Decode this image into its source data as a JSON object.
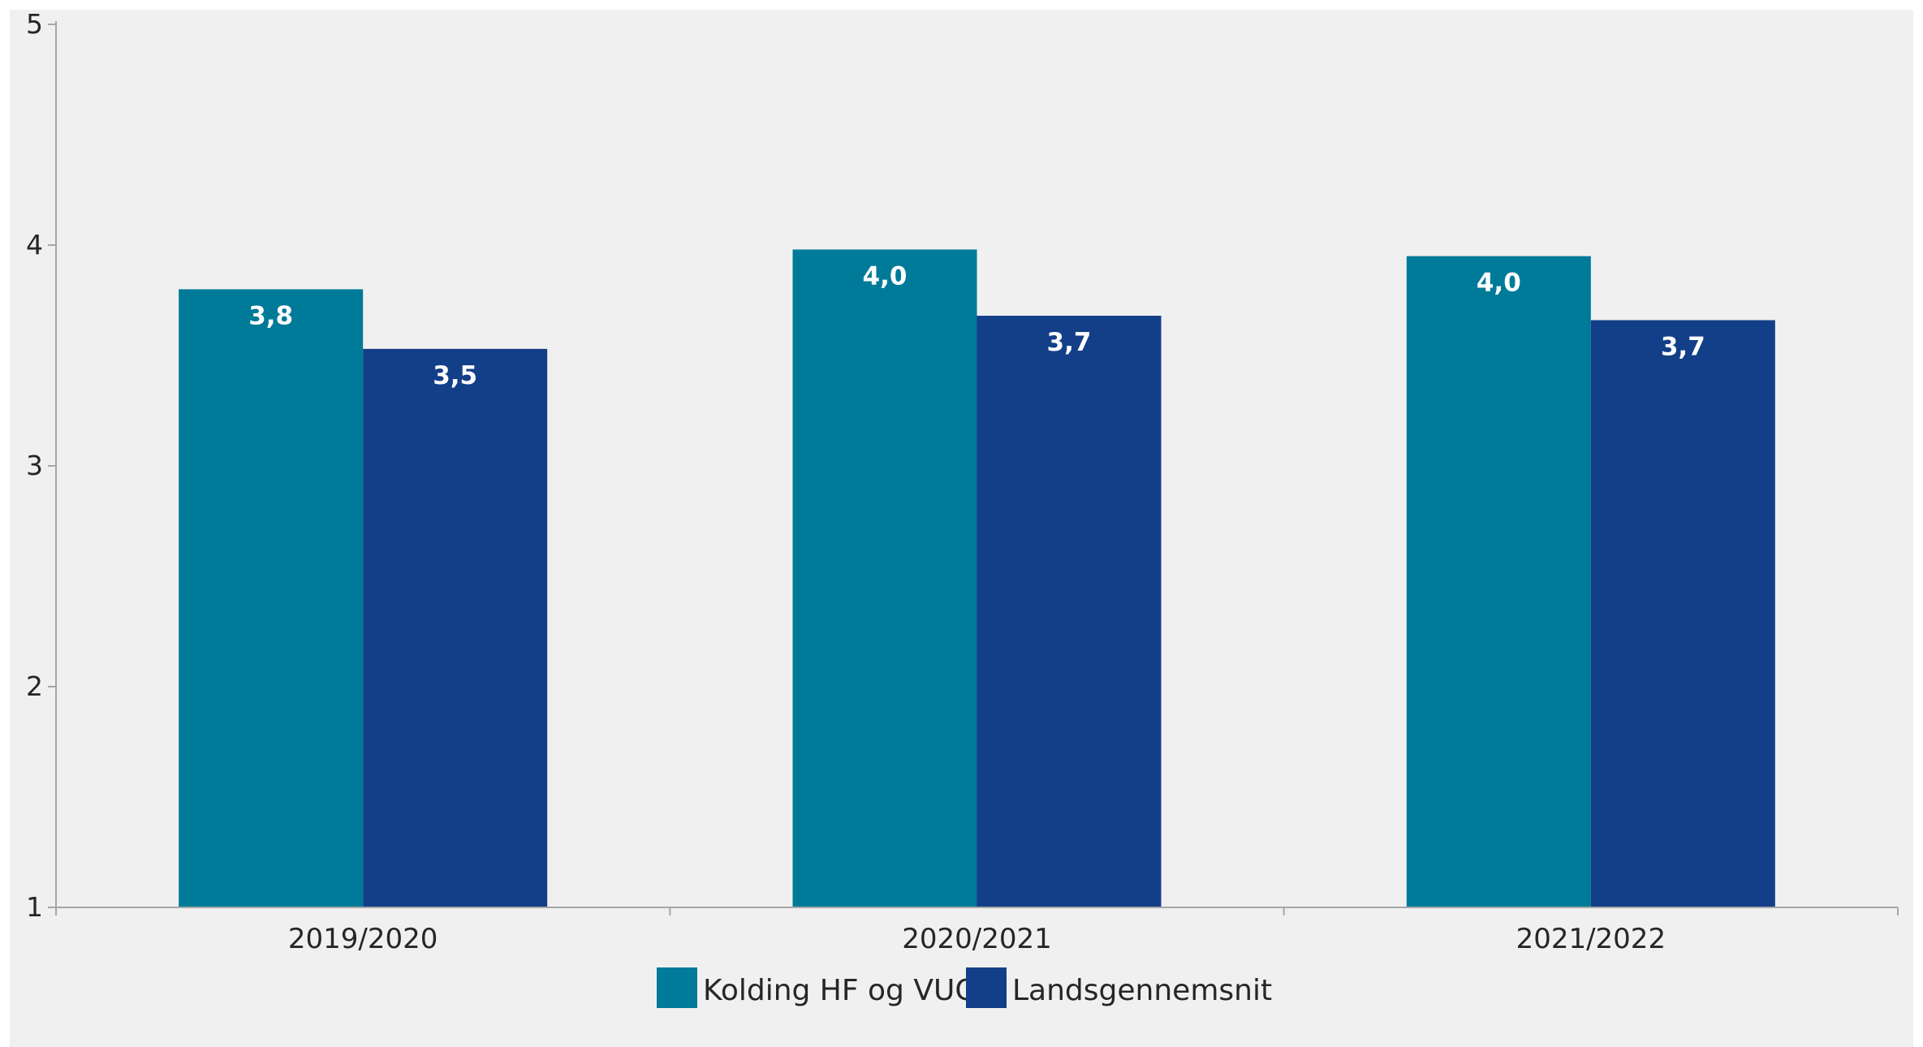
{
  "chart_data": {
    "type": "bar",
    "categories": [
      "2019/2020",
      "2020/2021",
      "2021/2022"
    ],
    "series": [
      {
        "name": "Kolding HF og VUC",
        "values": [
          3.8,
          3.98,
          3.95
        ],
        "labels": [
          "3,8",
          "4,0",
          "4,0"
        ],
        "color": "#007a99"
      },
      {
        "name": "Landsgennemsnit",
        "values": [
          3.53,
          3.68,
          3.66
        ],
        "labels": [
          "3,5",
          "3,7",
          "3,7"
        ],
        "color": "#123f87"
      }
    ],
    "ylim": [
      1,
      5
    ],
    "yticks": [
      1,
      2,
      3,
      4,
      5
    ],
    "ytick_labels": [
      "1",
      "2",
      "3",
      "4",
      "5"
    ],
    "title": "",
    "xlabel": "",
    "ylabel": "",
    "grid": false,
    "legend_position": "bottom-center",
    "background": "#f0f0f0",
    "axis_color": "#a6a6a6",
    "text_color": "#262626"
  }
}
